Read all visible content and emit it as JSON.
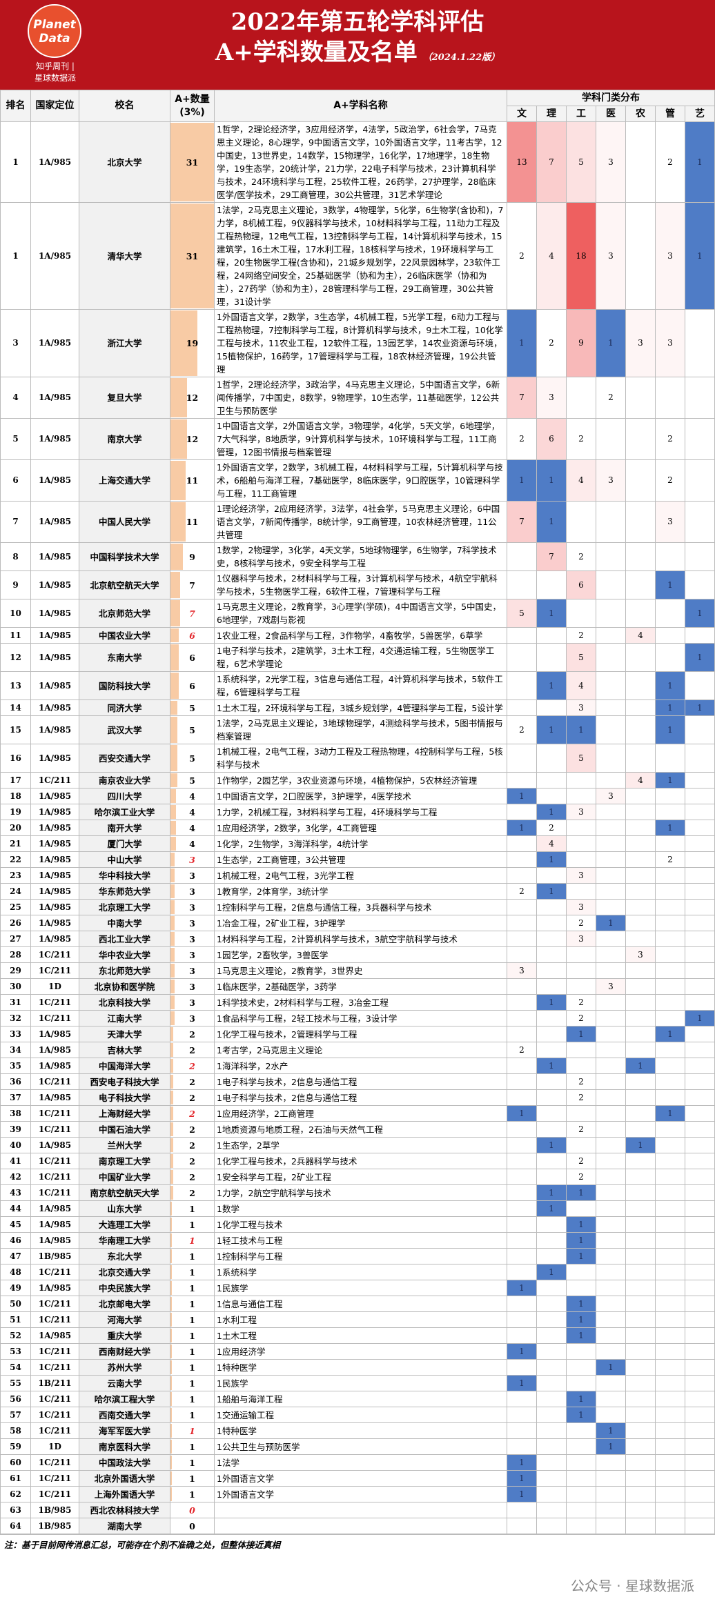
{
  "header": {
    "logo": [
      "Planet",
      "Data"
    ],
    "logo_caption": [
      "知乎周刊 |",
      "星球数据派"
    ],
    "title": "2022年第五轮学科评估",
    "subtitle": "A+学科数量及名单",
    "edition": "（2024.1.22版）"
  },
  "columns": {
    "rank": "排名",
    "level": "国家定位",
    "school": "校名",
    "count": "A+数量(3%)",
    "subjects": "A+学科名称",
    "dist": "学科门类分布",
    "categories": [
      "文",
      "理",
      "工",
      "医",
      "农",
      "管",
      "艺"
    ]
  },
  "table": {
    "rows": [
      {
        "rank": 1,
        "level": "1A/985",
        "school": "北京大学",
        "count": 31,
        "subjects": "1哲学，2理论经济学，3应用经济学，4法学，5政治学，6社会学，7马克思主义理论，8心理学，9中国语言文学，10外国语言文学，11考古学，12中国史，13世界史，14数学，15物理学，16化学，17地理学，18生物学，19生态学，20统计学，21力学，22电子科学与技术，23计算机科学与技术，24环境科学与工程，25软件工程，26药学，27护理学，28临床医学/医学技术，29工商管理，30公共管理，31艺术学理论",
        "dist": [
          13,
          7,
          5,
          3,
          null,
          2,
          1
        ]
      },
      {
        "rank": 1,
        "level": "1A/985",
        "school": "清华大学",
        "count": 31,
        "subjects": "1法学，2马克思主义理论，3数学，4物理学，5化学，6生物学(含协和)，7力学，8机械工程，9仪器科学与技术，10材料科学与工程，11动力工程及工程热物理，12电气工程，13控制科学与工程，14计算机科学与技术，15建筑学，16土木工程，17水利工程，18核科学与技术，19环境科学与工程，20生物医学工程(含协和)，21城乡规划学，22风景园林学，23软件工程，24网络空间安全，25基础医学（协和为主），26临床医学（协和为主），27药学（协和为主），28管理科学与工程，29工商管理，30公共管理，31设计学",
        "dist": [
          2,
          4,
          18,
          3,
          null,
          3,
          1
        ]
      },
      {
        "rank": 3,
        "level": "1A/985",
        "school": "浙江大学",
        "count": 19,
        "subjects": "1外国语言文学，2数学，3生态学，4机械工程，5光学工程，6动力工程与工程热物理，7控制科学与工程，8计算机科学与技术，9土木工程，10化学工程与技术，11农业工程，12软件工程，13园艺学，14农业资源与环境，15植物保护，16药学，17管理科学与工程，18农林经济管理，19公共管理",
        "dist": [
          1,
          2,
          9,
          1,
          3,
          3,
          null
        ]
      },
      {
        "rank": 4,
        "level": "1A/985",
        "school": "复旦大学",
        "count": 12,
        "subjects": "1哲学，2理论经济学，3政治学，4马克思主义理论，5中国语言文学，6新闻传播学，7中国史，8数学，9物理学，10生态学，11基础医学，12公共卫生与预防医学",
        "dist": [
          7,
          3,
          null,
          2,
          null,
          null,
          null
        ]
      },
      {
        "rank": 5,
        "level": "1A/985",
        "school": "南京大学",
        "count": 12,
        "subjects": "1中国语言文学，2外国语言文学，3物理学，4化学，5天文学，6地理学，7大气科学，8地质学，9计算机科学与技术，10环境科学与工程，11工商管理，12图书情报与档案管理",
        "dist": [
          2,
          6,
          2,
          null,
          null,
          2,
          null
        ]
      },
      {
        "rank": 6,
        "level": "1A/985",
        "school": "上海交通大学",
        "count": 11,
        "subjects": "1外国语言文学，2数学，3机械工程，4材料科学与工程，5计算机科学与技术，6船舶与海洋工程，7基础医学，8临床医学，9口腔医学，10管理科学与工程，11工商管理",
        "dist": [
          1,
          1,
          4,
          3,
          null,
          2,
          null
        ]
      },
      {
        "rank": 7,
        "level": "1A/985",
        "school": "中国人民大学",
        "count": 11,
        "subjects": "1理论经济学，2应用经济学，3法学，4社会学，5马克思主义理论，6中国语言文学，7新闻传播学，8统计学，9工商管理，10农林经济管理，11公共管理",
        "dist": [
          7,
          1,
          null,
          null,
          null,
          3,
          null
        ]
      },
      {
        "rank": 8,
        "level": "1A/985",
        "school": "中国科学技术大学",
        "count": 9,
        "subjects": "1数学，2物理学，3化学，4天文学，5地球物理学，6生物学，7科学技术史，8核科学与技术，9安全科学与工程",
        "dist": [
          null,
          7,
          2,
          null,
          null,
          null,
          null
        ]
      },
      {
        "rank": 9,
        "level": "1A/985",
        "school": "北京航空航天大学",
        "count": 7,
        "subjects": "1仪器科学与技术，2材料科学与工程，3计算机科学与技术，4航空宇航科学与技术，5生物医学工程，6软件工程，7管理科学与工程",
        "dist": [
          null,
          null,
          6,
          null,
          null,
          1,
          null
        ]
      },
      {
        "rank": 10,
        "level": "1A/985",
        "school": "北京师范大学",
        "count": 7,
        "count_color": "#e3262b",
        "subjects": "1马克思主义理论，2教育学，3心理学(学硕)，4中国语言文学，5中国史，6地理学，7戏剧与影视",
        "dist": [
          5,
          1,
          null,
          null,
          null,
          null,
          1
        ]
      },
      {
        "rank": 11,
        "level": "1A/985",
        "school": "中国农业大学",
        "count": 6,
        "count_color": "#e3262b",
        "subjects": "1农业工程，2食品科学与工程，3作物学，4畜牧学，5兽医学，6草学",
        "dist": [
          null,
          null,
          2,
          null,
          4,
          null,
          null
        ]
      },
      {
        "rank": 12,
        "level": "1A/985",
        "school": "东南大学",
        "count": 6,
        "subjects": "1电子科学与技术，2建筑学，3土木工程，4交通运输工程，5生物医学工程，6艺术学理论",
        "dist": [
          null,
          null,
          5,
          null,
          null,
          null,
          1
        ]
      },
      {
        "rank": 13,
        "level": "1A/985",
        "school": "国防科技大学",
        "count": 6,
        "subjects": "1系统科学，2光学工程，3信息与通信工程，4计算机科学与技术，5软件工程，6管理科学与工程",
        "dist": [
          null,
          1,
          4,
          null,
          null,
          1,
          null
        ]
      },
      {
        "rank": 14,
        "level": "1A/985",
        "school": "同济大学",
        "count": 5,
        "subjects": "1土木工程，2环境科学与工程，3城乡规划学，4管理科学与工程，5设计学",
        "dist": [
          null,
          null,
          3,
          null,
          null,
          1,
          1
        ]
      },
      {
        "rank": 15,
        "level": "1A/985",
        "school": "武汉大学",
        "count": 5,
        "subjects": "1法学，2马克思主义理论，3地球物理学，4测绘科学与技术，5图书情报与档案管理",
        "dist": [
          2,
          1,
          1,
          null,
          null,
          1,
          null
        ]
      },
      {
        "rank": 16,
        "level": "1A/985",
        "school": "西安交通大学",
        "count": 5,
        "subjects": "1机械工程，2电气工程，3动力工程及工程热物理，4控制科学与工程，5核科学与技术",
        "dist": [
          null,
          null,
          5,
          null,
          null,
          null,
          null
        ]
      },
      {
        "rank": 17,
        "level": "1C/211",
        "school": "南京农业大学",
        "count": 5,
        "subjects": "1作物学，2园艺学，3农业资源与环境，4植物保护，5农林经济管理",
        "dist": [
          null,
          null,
          null,
          null,
          4,
          1,
          null
        ]
      },
      {
        "rank": 18,
        "level": "1A/985",
        "school": "四川大学",
        "count": 4,
        "subjects": "1中国语言文学，2口腔医学，3护理学，4医学技术",
        "dist": [
          1,
          null,
          null,
          3,
          null,
          null,
          null
        ]
      },
      {
        "rank": 19,
        "level": "1A/985",
        "school": "哈尔滨工业大学",
        "count": 4,
        "subjects": "1力学，2机械工程，3材料科学与工程，4环境科学与工程",
        "dist": [
          null,
          1,
          3,
          null,
          null,
          null,
          null
        ]
      },
      {
        "rank": 20,
        "level": "1A/985",
        "school": "南开大学",
        "count": 4,
        "subjects": "1应用经济学，2数学，3化学，4工商管理",
        "dist": [
          1,
          2,
          null,
          null,
          null,
          1,
          null
        ]
      },
      {
        "rank": 21,
        "level": "1A/985",
        "school": "厦门大学",
        "count": 4,
        "subjects": "1化学，2生物学，3海洋科学，4统计学",
        "dist": [
          null,
          4,
          null,
          null,
          null,
          null,
          null
        ]
      },
      {
        "rank": 22,
        "level": "1A/985",
        "school": "中山大学",
        "count": 3,
        "count_color": "#e3262b",
        "subjects": "1生态学，2工商管理，3公共管理",
        "dist": [
          null,
          1,
          null,
          null,
          null,
          2,
          null
        ]
      },
      {
        "rank": 23,
        "level": "1A/985",
        "school": "华中科技大学",
        "count": 3,
        "subjects": "1机械工程，2电气工程，3光学工程",
        "dist": [
          null,
          null,
          3,
          null,
          null,
          null,
          null
        ]
      },
      {
        "rank": 24,
        "level": "1A/985",
        "school": "华东师范大学",
        "count": 3,
        "subjects": "1教育学，2体育学，3统计学",
        "dist": [
          2,
          1,
          null,
          null,
          null,
          null,
          null
        ]
      },
      {
        "rank": 25,
        "level": "1A/985",
        "school": "北京理工大学",
        "count": 3,
        "subjects": "1控制科学与工程，2信息与通信工程，3兵器科学与技术",
        "dist": [
          null,
          null,
          3,
          null,
          null,
          null,
          null
        ]
      },
      {
        "rank": 26,
        "level": "1A/985",
        "school": "中南大学",
        "count": 3,
        "subjects": "1冶金工程，2矿业工程，3护理学",
        "dist": [
          null,
          null,
          2,
          1,
          null,
          null,
          null
        ]
      },
      {
        "rank": 27,
        "level": "1A/985",
        "school": "西北工业大学",
        "count": 3,
        "subjects": "1材料科学与工程，2计算机科学与技术，3航空宇航科学与技术",
        "dist": [
          null,
          null,
          3,
          null,
          null,
          null,
          null
        ]
      },
      {
        "rank": 28,
        "level": "1C/211",
        "school": "华中农业大学",
        "count": 3,
        "subjects": "1园艺学，2畜牧学，3兽医学",
        "dist": [
          null,
          null,
          null,
          null,
          3,
          null,
          null
        ]
      },
      {
        "rank": 29,
        "level": "1C/211",
        "school": "东北师范大学",
        "count": 3,
        "subjects": "1马克思主义理论，2教育学，3世界史",
        "dist": [
          3,
          null,
          null,
          null,
          null,
          null,
          null
        ]
      },
      {
        "rank": 30,
        "level": "1D",
        "school": "北京协和医学院",
        "count": 3,
        "subjects": "1临床医学，2基础医学，3药学",
        "dist": [
          null,
          null,
          null,
          3,
          null,
          null,
          null
        ]
      },
      {
        "rank": 31,
        "level": "1C/211",
        "school": "北京科技大学",
        "count": 3,
        "subjects": "1科学技术史，2材料科学与工程，3冶金工程",
        "dist": [
          null,
          1,
          2,
          null,
          null,
          null,
          null
        ]
      },
      {
        "rank": 32,
        "level": "1C/211",
        "school": "江南大学",
        "count": 3,
        "subjects": "1食品科学与工程，2轻工技术与工程，3设计学",
        "dist": [
          null,
          null,
          2,
          null,
          null,
          null,
          1
        ]
      },
      {
        "rank": 33,
        "level": "1A/985",
        "school": "天津大学",
        "count": 2,
        "subjects": "1化学工程与技术，2管理科学与工程",
        "dist": [
          null,
          null,
          1,
          null,
          null,
          1,
          null
        ]
      },
      {
        "rank": 34,
        "level": "1A/985",
        "school": "吉林大学",
        "count": 2,
        "subjects": "1考古学，2马克思主义理论",
        "dist": [
          2,
          null,
          null,
          null,
          null,
          null,
          null
        ]
      },
      {
        "rank": 35,
        "level": "1A/985",
        "school": "中国海洋大学",
        "count": 2,
        "count_color": "#e3262b",
        "subjects": "1海洋科学，2水产",
        "dist": [
          null,
          1,
          null,
          null,
          1,
          null,
          null
        ]
      },
      {
        "rank": 36,
        "level": "1C/211",
        "school": "西安电子科技大学",
        "count": 2,
        "subjects": "1电子科学与技术，2信息与通信工程",
        "dist": [
          null,
          null,
          2,
          null,
          null,
          null,
          null
        ]
      },
      {
        "rank": 37,
        "level": "1A/985",
        "school": "电子科技大学",
        "count": 2,
        "subjects": "1电子科学与技术，2信息与通信工程",
        "dist": [
          null,
          null,
          2,
          null,
          null,
          null,
          null
        ]
      },
      {
        "rank": 38,
        "level": "1C/211",
        "school": "上海财经大学",
        "count": 2,
        "count_color": "#e3262b",
        "subjects": "1应用经济学，2工商管理",
        "dist": [
          1,
          null,
          null,
          null,
          null,
          1,
          null
        ]
      },
      {
        "rank": 39,
        "level": "1C/211",
        "school": "中国石油大学",
        "count": 2,
        "subjects": "1地质资源与地质工程，2石油与天然气工程",
        "dist": [
          null,
          null,
          2,
          null,
          null,
          null,
          null
        ]
      },
      {
        "rank": 40,
        "level": "1A/985",
        "school": "兰州大学",
        "count": 2,
        "subjects": "1生态学，2草学",
        "dist": [
          null,
          1,
          null,
          null,
          1,
          null,
          null
        ]
      },
      {
        "rank": 41,
        "level": "1C/211",
        "school": "南京理工大学",
        "count": 2,
        "subjects": "1化学工程与技术，2兵器科学与技术",
        "dist": [
          null,
          null,
          2,
          null,
          null,
          null,
          null
        ]
      },
      {
        "rank": 42,
        "level": "1C/211",
        "school": "中国矿业大学",
        "count": 2,
        "subjects": "1安全科学与工程，2矿业工程",
        "dist": [
          null,
          null,
          2,
          null,
          null,
          null,
          null
        ]
      },
      {
        "rank": 43,
        "level": "1C/211",
        "school": "南京航空航天大学",
        "count": 2,
        "subjects": "1力学，2航空宇航科学与技术",
        "dist": [
          null,
          1,
          1,
          null,
          null,
          null,
          null
        ]
      },
      {
        "rank": 44,
        "level": "1A/985",
        "school": "山东大学",
        "count": 1,
        "subjects": "1数学",
        "dist": [
          null,
          1,
          null,
          null,
          null,
          null,
          null
        ]
      },
      {
        "rank": 45,
        "level": "1A/985",
        "school": "大连理工大学",
        "count": 1,
        "subjects": "1化学工程与技术",
        "dist": [
          null,
          null,
          1,
          null,
          null,
          null,
          null
        ]
      },
      {
        "rank": 46,
        "level": "1A/985",
        "school": "华南理工大学",
        "count": 1,
        "count_color": "#e3262b",
        "subjects": "1轻工技术与工程",
        "dist": [
          null,
          null,
          1,
          null,
          null,
          null,
          null
        ]
      },
      {
        "rank": 47,
        "level": "1B/985",
        "school": "东北大学",
        "count": 1,
        "subjects": "1控制科学与工程",
        "dist": [
          null,
          null,
          1,
          null,
          null,
          null,
          null
        ]
      },
      {
        "rank": 48,
        "level": "1C/211",
        "school": "北京交通大学",
        "count": 1,
        "subjects": "1系统科学",
        "dist": [
          null,
          1,
          null,
          null,
          null,
          null,
          null
        ]
      },
      {
        "rank": 49,
        "level": "1A/985",
        "school": "中央民族大学",
        "count": 1,
        "subjects": "1民族学",
        "dist": [
          1,
          null,
          null,
          null,
          null,
          null,
          null
        ]
      },
      {
        "rank": 50,
        "level": "1C/211",
        "school": "北京邮电大学",
        "count": 1,
        "subjects": "1信息与通信工程",
        "dist": [
          null,
          null,
          1,
          null,
          null,
          null,
          null
        ]
      },
      {
        "rank": 51,
        "level": "1C/211",
        "school": "河海大学",
        "count": 1,
        "subjects": "1水利工程",
        "dist": [
          null,
          null,
          1,
          null,
          null,
          null,
          null
        ]
      },
      {
        "rank": 52,
        "level": "1A/985",
        "school": "重庆大学",
        "count": 1,
        "subjects": "1土木工程",
        "dist": [
          null,
          null,
          1,
          null,
          null,
          null,
          null
        ]
      },
      {
        "rank": 53,
        "level": "1C/211",
        "school": "西南财经大学",
        "count": 1,
        "subjects": "1应用经济学",
        "dist": [
          1,
          null,
          null,
          null,
          null,
          null,
          null
        ]
      },
      {
        "rank": 54,
        "level": "1C/211",
        "school": "苏州大学",
        "count": 1,
        "subjects": "1特种医学",
        "dist": [
          null,
          null,
          null,
          1,
          null,
          null,
          null
        ]
      },
      {
        "rank": 55,
        "level": "1B/211",
        "school": "云南大学",
        "count": 1,
        "subjects": "1民族学",
        "dist": [
          1,
          null,
          null,
          null,
          null,
          null,
          null
        ]
      },
      {
        "rank": 56,
        "level": "1C/211",
        "school": "哈尔滨工程大学",
        "count": 1,
        "subjects": "1船舶与海洋工程",
        "dist": [
          null,
          null,
          1,
          null,
          null,
          null,
          null
        ]
      },
      {
        "rank": 57,
        "level": "1C/211",
        "school": "西南交通大学",
        "count": 1,
        "subjects": "1交通运输工程",
        "dist": [
          null,
          null,
          1,
          null,
          null,
          null,
          null
        ]
      },
      {
        "rank": 58,
        "level": "1C/211",
        "school": "海军军医大学",
        "count": 1,
        "count_color": "#e3262b",
        "subjects": "1特种医学",
        "dist": [
          null,
          null,
          null,
          1,
          null,
          null,
          null
        ]
      },
      {
        "rank": 59,
        "level": "1D",
        "school": "南京医科大学",
        "count": 1,
        "subjects": "1公共卫生与预防医学",
        "dist": [
          null,
          null,
          null,
          1,
          null,
          null,
          null
        ]
      },
      {
        "rank": 60,
        "level": "1C/211",
        "school": "中国政法大学",
        "count": 1,
        "subjects": "1法学",
        "dist": [
          1,
          null,
          null,
          null,
          null,
          null,
          null
        ]
      },
      {
        "rank": 61,
        "level": "1C/211",
        "school": "北京外国语大学",
        "count": 1,
        "subjects": "1外国语言文学",
        "dist": [
          1,
          null,
          null,
          null,
          null,
          null,
          null
        ]
      },
      {
        "rank": 62,
        "level": "1C/211",
        "school": "上海外国语大学",
        "count": 1,
        "subjects": "1外国语言文学",
        "dist": [
          1,
          null,
          null,
          null,
          null,
          null,
          null
        ]
      },
      {
        "rank": 63,
        "level": "1B/985",
        "school": "西北农林科技大学",
        "count": 0,
        "count_color": "#e3262b",
        "dist": [
          null,
          null,
          null,
          null,
          null,
          null,
          null
        ]
      },
      {
        "rank": 64,
        "level": "1B/985",
        "school": "湖南大学",
        "count": 0,
        "dist": [
          null,
          null,
          null,
          null,
          null,
          null,
          null
        ]
      }
    ]
  },
  "note": "注：基于目前网传消息汇总，可能存在个别不准确之处，但整体接近真相",
  "watermark": "公众号 · 星球数据派"
}
